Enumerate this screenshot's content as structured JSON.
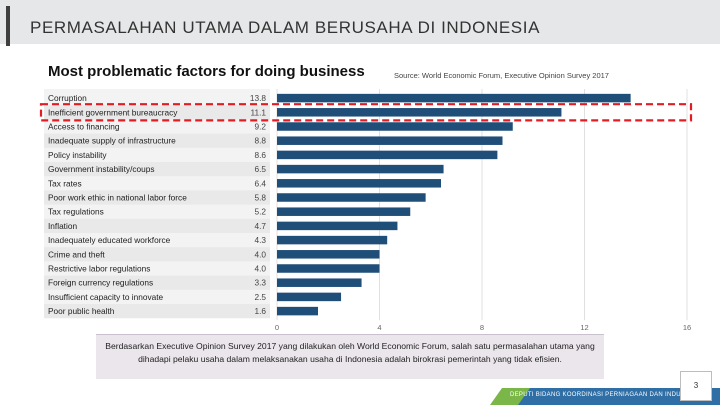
{
  "slide": {
    "title": "PERMASALAHAN UTAMA DALAM BERUSAHA DI INDONESIA",
    "caption": "Berdasarkan Executive Opinion Survey 2017 yang dilakukan oleh World Economic Forum, salah satu permasalahan utama yang dihadapi pelaku usaha dalam melaksanakan usaha di Indonesia adalah birokrasi pemerintah yang tidak efisien.",
    "footer_text": "DEPUTI BIDANG KOORDINASI PERNIAGAAN DAN INDUSTRI",
    "page_number": "3"
  },
  "colors": {
    "bar": "#1f4e79",
    "highlight": "#e31c23",
    "footer_blue": "#2f6fa5",
    "footer_green": "#7ab648"
  },
  "chart_data": {
    "type": "bar",
    "orientation": "horizontal",
    "title": "Most problematic factors for doing business",
    "source": "Source: World Economic Forum, Executive Opinion Survey 2017",
    "categories": [
      "Corruption",
      "Inefficient government bureaucracy",
      "Access to financing",
      "Inadequate supply of infrastructure",
      "Policy instability",
      "Government instability/coups",
      "Tax rates",
      "Poor work ethic in national labor force",
      "Tax regulations",
      "Inflation",
      "Inadequately educated workforce",
      "Crime and theft",
      "Restrictive labor regulations",
      "Foreign currency regulations",
      "Insufficient capacity to innovate",
      "Poor public health"
    ],
    "values": [
      13.8,
      11.1,
      9.2,
      8.8,
      8.6,
      6.5,
      6.4,
      5.8,
      5.2,
      4.7,
      4.3,
      4.0,
      4.0,
      3.3,
      2.5,
      1.6
    ],
    "value_labels": [
      "13.8",
      "11.1",
      "9.2",
      "8.8",
      "8.6",
      "6.5",
      "6.4",
      "5.8",
      "5.2",
      "4.7",
      "4.3",
      "4.0",
      "4.0",
      "3.3",
      "2.5",
      "1.6"
    ],
    "xlim": [
      0,
      16
    ],
    "xticks": [
      "0",
      "4",
      "8",
      "12",
      "16"
    ],
    "grid": true,
    "highlighted_category": "Inefficient government bureaucracy"
  }
}
